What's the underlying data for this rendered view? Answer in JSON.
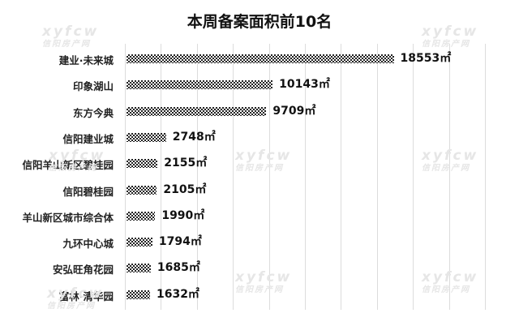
{
  "chart_data": {
    "type": "bar",
    "orientation": "horizontal",
    "title": "本周备案面积前10名",
    "categories": [
      "建业·未来城",
      "印象湖山",
      "东方今典",
      "信阳建业城",
      "信阳羊山新区碧桂园",
      "信阳碧桂园",
      "羊山新区城市综合体",
      "九环中心城",
      "安弘旺角花园",
      "富林·清华园"
    ],
    "values": [
      18553,
      10143,
      9709,
      2748,
      2155,
      2105,
      1990,
      1794,
      1685,
      1632
    ],
    "value_labels": [
      "18553㎡",
      "10143㎡",
      "9709㎡",
      "2748㎡",
      "2155㎡",
      "2105㎡",
      "1990㎡",
      "1794㎡",
      "1685㎡",
      "1632㎡"
    ],
    "unit": "㎡",
    "xlim": [
      0,
      25000
    ],
    "grid": true,
    "gridline_step": 2500,
    "legend": "none",
    "xlabel": "",
    "ylabel": ""
  },
  "watermark": {
    "text": "xyfcw",
    "subtext": "信阳房产网"
  }
}
